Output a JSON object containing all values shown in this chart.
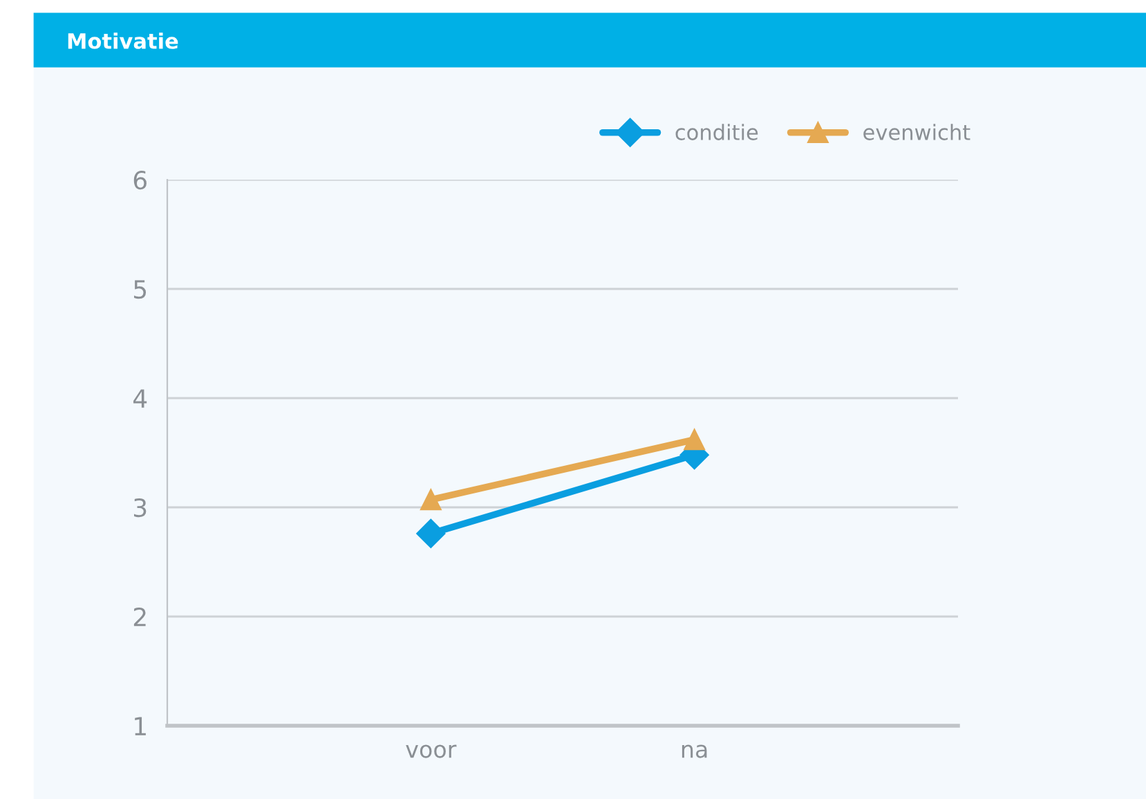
{
  "chart_data": {
    "type": "line",
    "title": "Motivatie",
    "categories": [
      "voor",
      "na"
    ],
    "series": [
      {
        "name": "conditie",
        "color": "#0a9ee0",
        "marker": "diamond",
        "values": [
          2.76,
          3.48
        ]
      },
      {
        "name": "evenwicht",
        "color": "#e5a952",
        "marker": "triangle",
        "values": [
          3.07,
          3.62
        ]
      }
    ],
    "ylim": [
      1,
      6
    ],
    "yticks": [
      1,
      2,
      3,
      4,
      5,
      6
    ],
    "grid": "y",
    "legend": "top right"
  }
}
